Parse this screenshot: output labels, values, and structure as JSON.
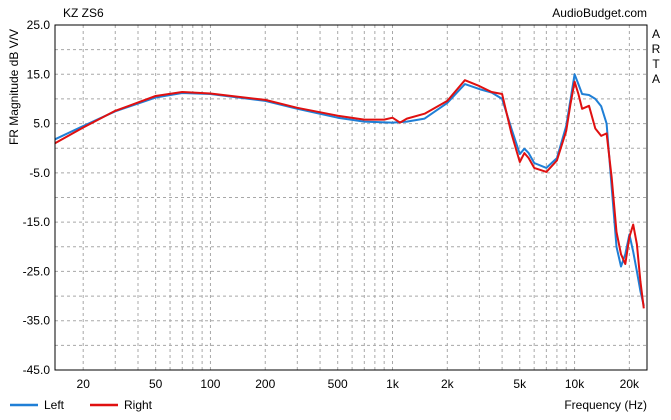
{
  "chart_data": {
    "type": "line",
    "title": "KZ ZS6",
    "watermark": "AudioBudget.com",
    "side_label": "ARTA",
    "xlabel": "Frequency (Hz)",
    "ylabel": "FR Magnitude dB V/V",
    "x_scale": "log",
    "xlim": [
      14,
      25000
    ],
    "ylim": [
      -45,
      25
    ],
    "grid": true,
    "legend_position": "bottom-left",
    "y_ticks": [
      25.0,
      15.0,
      5.0,
      -5.0,
      -15.0,
      -25.0,
      -35.0,
      -45.0
    ],
    "y_tick_labels": [
      "25.0",
      "15.0",
      "5.0",
      "-5.0",
      "-15.0",
      "-25.0",
      "-35.0",
      "-45.0"
    ],
    "x_ticks": [
      20,
      50,
      100,
      200,
      500,
      1000,
      2000,
      5000,
      10000,
      20000
    ],
    "x_tick_labels": [
      "20",
      "50",
      "100",
      "200",
      "500",
      "1k",
      "2k",
      "5k",
      "10k",
      "20k"
    ],
    "series": [
      {
        "name": "Left",
        "color": "#1f7fd6",
        "x": [
          14,
          20,
          30,
          50,
          70,
          100,
          200,
          300,
          500,
          700,
          1000,
          1200,
          1500,
          2000,
          2500,
          3000,
          3500,
          4000,
          4500,
          5000,
          5300,
          5600,
          6000,
          7000,
          8000,
          9000,
          10000,
          10500,
          11000,
          12000,
          13000,
          14000,
          15000,
          16000,
          17000,
          18000,
          19000,
          20000,
          21000,
          22000,
          23000,
          24000
        ],
        "y": [
          1.8,
          4.5,
          7.5,
          10.3,
          11.2,
          11.0,
          9.6,
          8.0,
          6.2,
          5.4,
          5.2,
          5.4,
          6.0,
          9.2,
          13.0,
          12.0,
          11.3,
          10.0,
          4.0,
          -1.2,
          -0.1,
          -1.0,
          -3.0,
          -4.0,
          -2.0,
          4.5,
          15.0,
          13.0,
          11.0,
          10.8,
          10.0,
          8.5,
          5.0,
          -8.0,
          -20.0,
          -24.0,
          -21.5,
          -17.5,
          -21.0,
          -25.0,
          -29.0,
          -32.0
        ]
      },
      {
        "name": "Right",
        "color": "#e01010",
        "x": [
          14,
          20,
          30,
          50,
          70,
          100,
          200,
          300,
          500,
          700,
          900,
          1000,
          1100,
          1200,
          1500,
          2000,
          2500,
          3000,
          3500,
          4000,
          4500,
          5000,
          5300,
          5600,
          6000,
          7000,
          8000,
          9000,
          9500,
          10000,
          10500,
          11000,
          12000,
          13000,
          14000,
          15000,
          16000,
          17000,
          18000,
          19000,
          20000,
          21000,
          22000,
          23000,
          24000
        ],
        "y": [
          1.0,
          4.2,
          7.6,
          10.6,
          11.4,
          11.1,
          9.8,
          8.2,
          6.6,
          5.8,
          5.8,
          6.2,
          5.2,
          6.0,
          7.0,
          9.6,
          13.8,
          12.6,
          11.4,
          11.0,
          3.0,
          -2.8,
          -1.0,
          -2.0,
          -4.0,
          -4.8,
          -2.5,
          3.5,
          9.0,
          13.5,
          11.0,
          8.0,
          8.6,
          4.0,
          2.5,
          3.0,
          -6.0,
          -17.0,
          -21.5,
          -23.5,
          -18.0,
          -15.5,
          -19.5,
          -27.0,
          -32.5
        ]
      }
    ]
  }
}
